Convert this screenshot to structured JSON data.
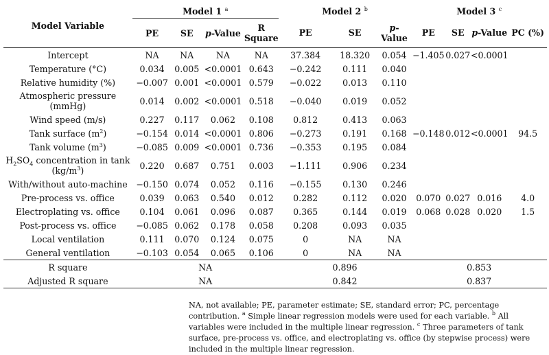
{
  "headers": {
    "model_variable": "Model Variable",
    "model1": "Model 1",
    "model1_sup": "a",
    "model2": "Model 2",
    "model2_sup": "b",
    "model3": "Model 3",
    "model3_sup": "c",
    "pe": "PE",
    "se": "SE",
    "p": "p",
    "value_hyphen": "-Value",
    "value": "Value",
    "r_square_1": "R",
    "r_square_2": "Square",
    "pc": "PC (%)"
  },
  "rows": [
    {
      "var": "Intercept",
      "m1": [
        "NA",
        "NA",
        "NA",
        "NA"
      ],
      "m2": [
        "37.384",
        "18.320",
        "0.054"
      ],
      "m3": [
        "−1.405",
        "0.027",
        "<0.0001",
        ""
      ]
    },
    {
      "var": "Temperature (°C)",
      "m1": [
        "0.034",
        "0.005",
        "<0.0001",
        "0.643"
      ],
      "m2": [
        "−0.242",
        "0.111",
        "0.040"
      ],
      "m3": [
        "",
        "",
        "",
        ""
      ]
    },
    {
      "var": "Relative humidity (%)",
      "m1": [
        "−0.007",
        "0.001",
        "<0.0001",
        "0.579"
      ],
      "m2": [
        "−0.022",
        "0.013",
        "0.110"
      ],
      "m3": [
        "",
        "",
        "",
        ""
      ]
    },
    {
      "var": "Atmospheric pressure",
      "var2": "(mmHg)",
      "m1": [
        "0.014",
        "0.002",
        "<0.0001",
        "0.518"
      ],
      "m2": [
        "−0.040",
        "0.019",
        "0.052"
      ],
      "m3": [
        "",
        "",
        "",
        ""
      ]
    },
    {
      "var": "Wind speed (m/s)",
      "m1": [
        "0.227",
        "0.117",
        "0.062",
        "0.108"
      ],
      "m2": [
        "0.812",
        "0.413",
        "0.063"
      ],
      "m3": [
        "",
        "",
        "",
        ""
      ]
    },
    {
      "var": "Tank surface (m",
      "var_sup": "2",
      "var_end": ")",
      "m1": [
        "−0.154",
        "0.014",
        "<0.0001",
        "0.806"
      ],
      "m2": [
        "−0.273",
        "0.191",
        "0.168"
      ],
      "m3": [
        "−0.148",
        "0.012",
        "<0.0001",
        "94.5"
      ]
    },
    {
      "var": "Tank volume (m",
      "var_sup": "3",
      "var_end": ")",
      "m1": [
        "−0.085",
        "0.009",
        "<0.0001",
        "0.736"
      ],
      "m2": [
        "−0.353",
        "0.195",
        "0.084"
      ],
      "m3": [
        "",
        "",
        "",
        ""
      ]
    },
    {
      "var": "H",
      "var_sub": "2",
      "var_mid": "SO",
      "var_sub2": "4",
      "var_end": " concentration in tank",
      "var2": "(kg/m",
      "var2_sup": "3",
      "var2_end": ")",
      "m1": [
        "0.220",
        "0.687",
        "0.751",
        "0.003"
      ],
      "m2": [
        "−1.111",
        "0.906",
        "0.234"
      ],
      "m3": [
        "",
        "",
        "",
        ""
      ]
    },
    {
      "var": "With/without auto-machine",
      "m1": [
        "−0.150",
        "0.074",
        "0.052",
        "0.116"
      ],
      "m2": [
        "−0.155",
        "0.130",
        "0.246"
      ],
      "m3": [
        "",
        "",
        "",
        ""
      ]
    },
    {
      "var": "Pre-process vs. office",
      "m1": [
        "0.039",
        "0.063",
        "0.540",
        "0.012"
      ],
      "m2": [
        "0.282",
        "0.112",
        "0.020"
      ],
      "m3": [
        "0.070",
        "0.027",
        "0.016",
        "4.0"
      ]
    },
    {
      "var": "Electroplating vs. office",
      "m1": [
        "0.104",
        "0.061",
        "0.096",
        "0.087"
      ],
      "m2": [
        "0.365",
        "0.144",
        "0.019"
      ],
      "m3": [
        "0.068",
        "0.028",
        "0.020",
        "1.5"
      ]
    },
    {
      "var": "Post-process vs. office",
      "m1": [
        "−0.085",
        "0.062",
        "0.178",
        "0.058"
      ],
      "m2": [
        "0.208",
        "0.093",
        "0.035"
      ],
      "m3": [
        "",
        "",
        "",
        ""
      ]
    },
    {
      "var": "Local ventilation",
      "m1": [
        "0.111",
        "0.070",
        "0.124",
        "0.075"
      ],
      "m2": [
        "0",
        "NA",
        "NA"
      ],
      "m3": [
        "",
        "",
        "",
        ""
      ]
    },
    {
      "var": "General ventilation",
      "m1": [
        "−0.103",
        "0.054",
        "0.065",
        "0.106"
      ],
      "m2": [
        "0",
        "NA",
        "NA"
      ],
      "m3": [
        "",
        "",
        "",
        ""
      ]
    }
  ],
  "summary": {
    "r_square": {
      "label": "R square",
      "m1": "NA",
      "m2": "0.896",
      "m3": "0.853"
    },
    "adj_r_square": {
      "label": "Adjusted R square",
      "m1": "NA",
      "m2": "0.842",
      "m3": "0.837"
    }
  },
  "notes": {
    "text1": "NA, not available; PE, parameter estimate; SE, standard error; PC, percentage contribution. ",
    "sup_a": "a",
    "text2": " Simple linear regression models were used for each variable. ",
    "sup_b": "b",
    "text3": " All variables were included in the multiple linear regression. ",
    "sup_c": "c",
    "text4": " Three parameters of tank surface, pre-process vs. office, and electroplating vs. office (by stepwise process) were included in the multiple linear regression."
  }
}
